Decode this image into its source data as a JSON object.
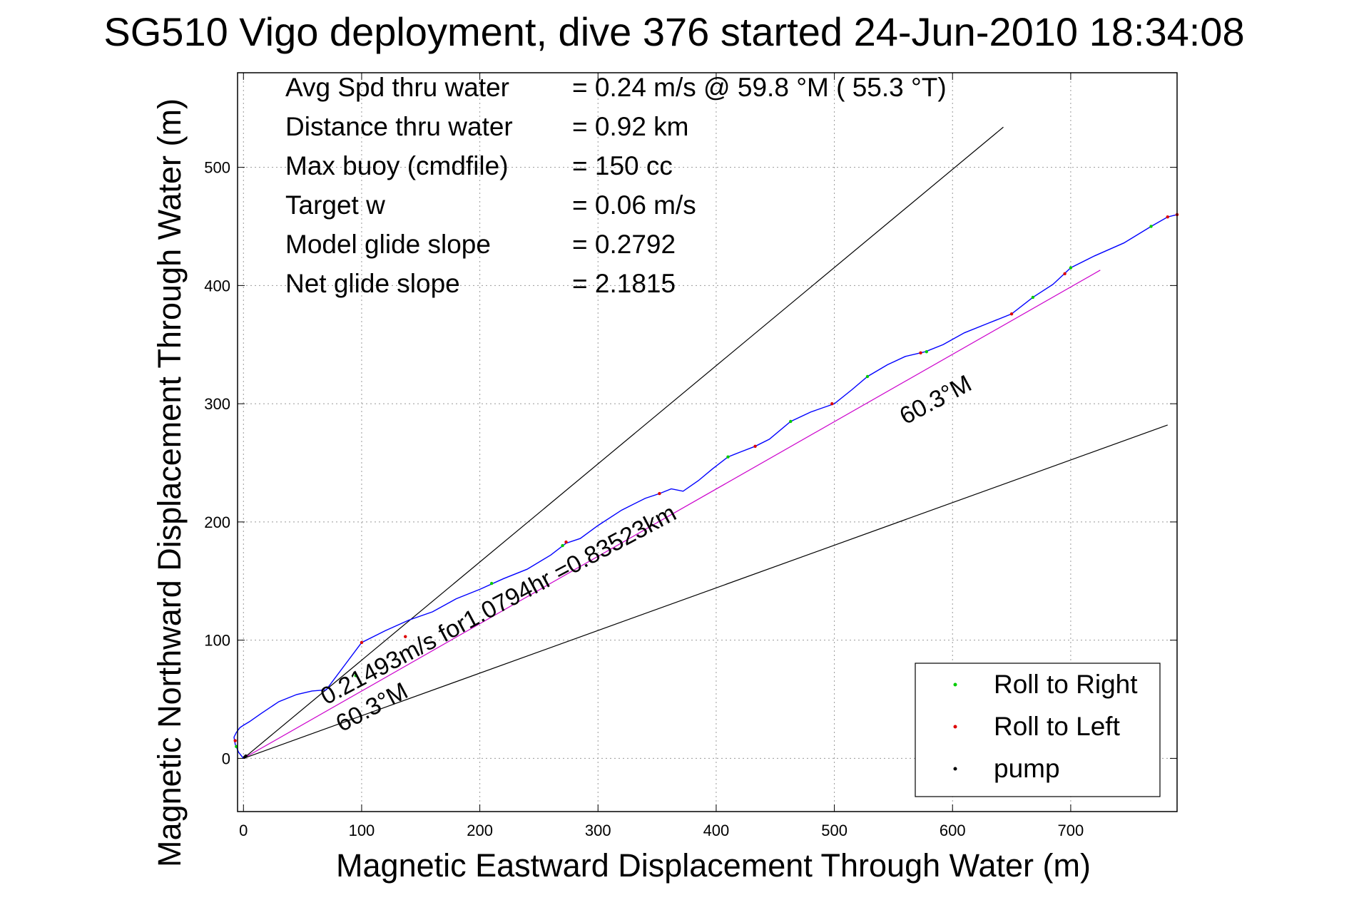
{
  "chart_data": {
    "type": "line",
    "title": "SG510 Vigo deployment, dive 376 started 24-Jun-2010 18:34:08",
    "xlabel": "Magnetic Eastward Displacement Through Water (m)",
    "ylabel": "Magnetic Northward Displacement Through Water (m)",
    "xlim": [
      -5,
      790
    ],
    "ylim": [
      -45,
      580
    ],
    "xticks": [
      0,
      100,
      200,
      300,
      400,
      500,
      600,
      700
    ],
    "yticks": [
      0,
      100,
      200,
      300,
      400,
      500
    ],
    "grid": true,
    "info_lines": [
      {
        "label": "Avg Spd thru water",
        "value": "=  0.24 m/s @  59.8 °M ( 55.3 °T)"
      },
      {
        "label": "Distance thru water",
        "value": "=  0.92 km"
      },
      {
        "label": "Max buoy (cmdfile)",
        "value": "= 150 cc"
      },
      {
        "label": "Target w",
        "value": "= 0.06 m/s"
      },
      {
        "label": "Model glide slope",
        "value": "= 0.2792"
      },
      {
        "label": "Net glide slope",
        "value": "= 2.1815"
      }
    ],
    "annotations": [
      {
        "text": "0.21493m/s for1.0794hr =0.83523km",
        "x": 70,
        "y": 45
      },
      {
        "text": "60.3°M",
        "x": 83,
        "y": 22
      },
      {
        "text": "60.3°M",
        "x": 560,
        "y": 282
      }
    ],
    "reference_lines": [
      {
        "name": "upper-bound-line",
        "x": [
          0,
          643
        ],
        "y": [
          0,
          534
        ],
        "color": "#000000"
      },
      {
        "name": "lower-bound-line",
        "x": [
          0,
          782
        ],
        "y": [
          0,
          282
        ],
        "color": "#000000"
      },
      {
        "name": "net-track-line",
        "x": [
          0,
          725
        ],
        "y": [
          0,
          413
        ],
        "color": "#cc00cc"
      }
    ],
    "series": [
      {
        "name": "track",
        "color": "#0000ff",
        "x": [
          0,
          -4,
          -7,
          -8,
          -6,
          -3,
          0,
          5,
          15,
          30,
          45,
          58,
          70,
          85,
          100,
          120,
          140,
          160,
          180,
          200,
          220,
          240,
          260,
          273,
          285,
          300,
          320,
          340,
          352,
          362,
          372,
          385,
          397,
          410,
          420,
          433,
          445,
          463,
          480,
          500,
          515,
          528,
          545,
          560,
          577,
          592,
          610,
          630,
          650,
          668,
          685,
          700,
          720,
          745,
          768,
          782,
          790
        ],
        "y": [
          0,
          5,
          12,
          18,
          22,
          26,
          28,
          31,
          38,
          48,
          54,
          57,
          58,
          78,
          98,
          108,
          117,
          124,
          135,
          143,
          152,
          160,
          172,
          182,
          186,
          197,
          210,
          220,
          224,
          228,
          226,
          235,
          245,
          255,
          259,
          264,
          270,
          285,
          293,
          300,
          312,
          323,
          333,
          340,
          344,
          350,
          360,
          368,
          376,
          390,
          401,
          415,
          425,
          436,
          450,
          458,
          460
        ]
      },
      {
        "name": "Roll to Right",
        "color": "#00cc00",
        "marker": "dot",
        "x": [
          -6,
          95,
          210,
          270,
          410,
          463,
          528,
          578,
          668,
          700,
          768
        ],
        "y": [
          10,
          70,
          148,
          180,
          255,
          285,
          323,
          344,
          390,
          415,
          450
        ]
      },
      {
        "name": "Roll to Left",
        "color": "#dd0000",
        "marker": "dot",
        "x": [
          -7,
          100,
          137,
          273,
          352,
          433,
          498,
          573,
          650,
          695,
          782,
          790
        ],
        "y": [
          15,
          98,
          103,
          183,
          224,
          264,
          300,
          343,
          376,
          410,
          458,
          460
        ]
      },
      {
        "name": "pump",
        "color": "#000000",
        "marker": "dot",
        "x": [
          1,
          2
        ],
        "y": [
          1,
          2
        ]
      }
    ],
    "legend": {
      "placement": "bottom-right",
      "entries": [
        "Roll to Right",
        "Roll to Left",
        "pump"
      ]
    }
  }
}
